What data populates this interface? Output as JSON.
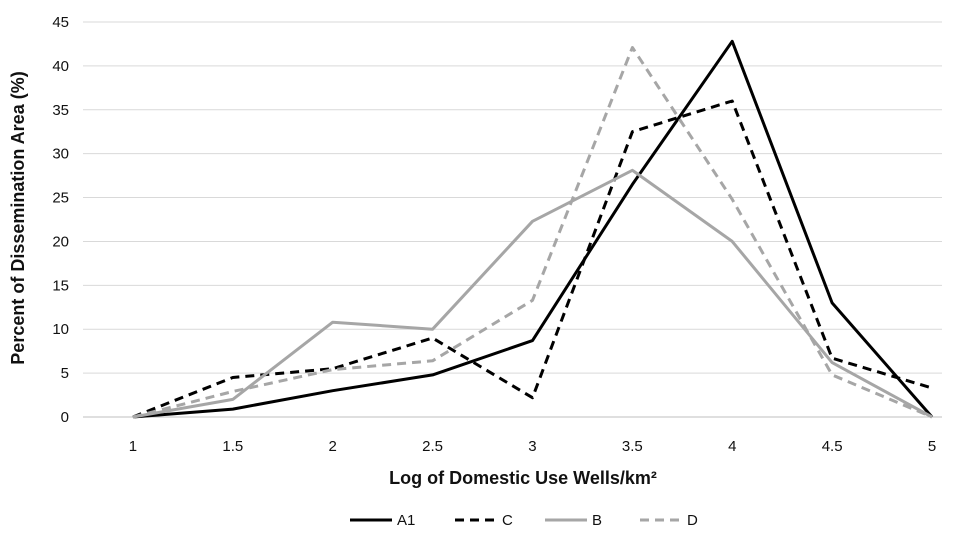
{
  "chart_data": {
    "type": "line",
    "title": "",
    "xlabel": "Log of Domestic Use Wells/km²",
    "ylabel": "Percent of Dissemination Area (%)",
    "x": [
      1,
      1.5,
      2,
      2.5,
      3,
      3.5,
      4,
      4.5,
      5
    ],
    "x_tick_labels": [
      "1",
      "1.5",
      "2",
      "2.5",
      "3",
      "3.5",
      "4",
      "4.5",
      "5"
    ],
    "y_ticks": [
      0,
      5,
      10,
      15,
      20,
      25,
      30,
      35,
      40,
      45
    ],
    "y_tick_labels": [
      "0",
      "5",
      "10",
      "15",
      "20",
      "25",
      "30",
      "35",
      "40",
      "45"
    ],
    "xlim": [
      0.75,
      5.05
    ],
    "ylim": [
      0,
      45
    ],
    "grid": "horizontal",
    "legend_position": "bottom",
    "series": [
      {
        "name": "A1",
        "color": "#000000",
        "dash": "solid",
        "values": [
          0,
          0.9,
          3.0,
          4.8,
          8.7,
          26.5,
          42.8,
          13.0,
          0
        ]
      },
      {
        "name": "C",
        "color": "#000000",
        "dash": "dashed",
        "values": [
          0,
          4.5,
          5.5,
          9.0,
          2.2,
          32.5,
          36.0,
          6.7,
          3.3
        ]
      },
      {
        "name": "B",
        "color": "#a6a6a6",
        "dash": "solid",
        "values": [
          0,
          2.0,
          10.8,
          10.0,
          22.3,
          28.1,
          20.0,
          6.2,
          0
        ]
      },
      {
        "name": "D",
        "color": "#a6a6a6",
        "dash": "dashed",
        "values": [
          0,
          2.9,
          5.4,
          6.4,
          13.3,
          42.1,
          24.8,
          4.8,
          0
        ]
      }
    ]
  }
}
